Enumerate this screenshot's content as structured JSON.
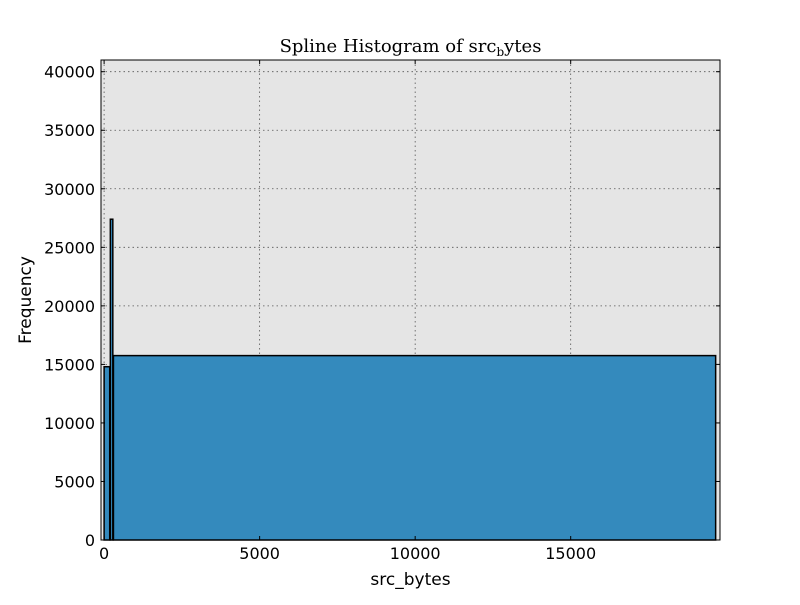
{
  "chart_data": {
    "type": "bar",
    "title": "Spline Histogram of src",
    "title_subscript": "b",
    "title_suffix": "ytes",
    "xlabel": "src_bytes",
    "ylabel": "Frequency",
    "xlim": [
      -100,
      19800
    ],
    "ylim": [
      0,
      41000
    ],
    "xticks": [
      0,
      5000,
      10000,
      15000
    ],
    "yticks": [
      0,
      5000,
      10000,
      15000,
      20000,
      25000,
      30000,
      35000,
      40000
    ],
    "grid": true,
    "bins": [
      {
        "x0": 0,
        "x1": 180,
        "value": 14800
      },
      {
        "x0": 200,
        "x1": 280,
        "value": 27400
      },
      {
        "x0": 300,
        "x1": 19660,
        "value": 15750
      }
    ],
    "colors": {
      "bar_fill": "#348abd",
      "bar_edge": "#000000",
      "plot_bg": "#e5e5e5",
      "grid": "#555555"
    }
  }
}
